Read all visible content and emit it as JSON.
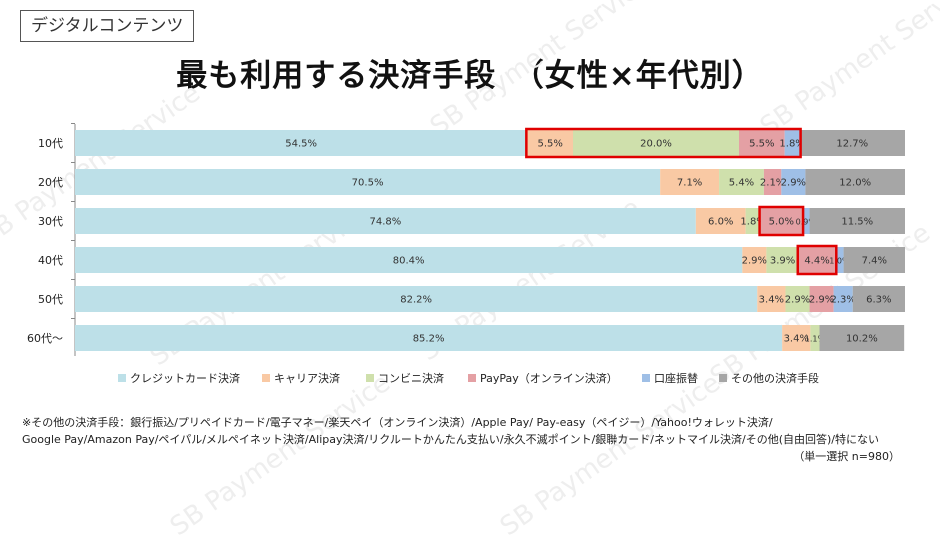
{
  "header": {
    "tag": "デジタルコンテンツ",
    "title": "最も利用する決済手段　（女性×年代別）"
  },
  "watermark": "SB Payment Service",
  "notes": {
    "line1": "※その他の決済手段：銀行振込/プリペイドカード/電子マネー/楽天ペイ（オンライン決済）/Apple Pay/ Pay-easy（ペイジー）/Yahoo!ウォレット決済/",
    "line2": "Google Pay/Amazon Pay/ペイパル/メルペイネット決済/Alipay決済/リクルートかんたん支払い/永久不滅ポイント/銀聯カード/ネットマイル決済/その他(自由回答)/特にない",
    "sample": "（単一選択 n=980）"
  },
  "chart_data": {
    "type": "bar",
    "orientation": "horizontal",
    "stacked": true,
    "title": "最も利用する決済手段　（女性×年代別）",
    "categories": [
      "10代",
      "20代",
      "30代",
      "40代",
      "50代",
      "60代～"
    ],
    "xlim": [
      0,
      100
    ],
    "series": [
      {
        "name": "クレジットカード決済",
        "color": "#bde0e8",
        "values": [
          54.5,
          70.5,
          74.8,
          80.4,
          82.2,
          85.2
        ],
        "labels": [
          "54.5%",
          "70.5%",
          "74.8%",
          "80.4%",
          "82.2%",
          "85.2%"
        ]
      },
      {
        "name": "キャリア決済",
        "color": "#f9c9a4",
        "values": [
          5.5,
          7.1,
          6.0,
          2.9,
          3.4,
          3.4
        ],
        "labels": [
          "5.5%",
          "7.1%",
          "6.0%",
          "2.9%",
          "3.4%",
          "3.4%"
        ]
      },
      {
        "name": "コンビニ決済",
        "color": "#cfe0ac",
        "values": [
          20.0,
          5.4,
          1.8,
          3.9,
          2.9,
          1.1
        ],
        "labels": [
          "20.0%",
          "5.4%",
          "1.8%",
          "3.9%",
          "2.9%",
          "1.1%"
        ]
      },
      {
        "name": "PayPay（オンライン決済）",
        "color": "#e4a0a4",
        "values": [
          5.5,
          2.1,
          5.0,
          4.4,
          2.9,
          0.0
        ],
        "labels": [
          "5.5%",
          "2.1%",
          "5.0%",
          "4.4%",
          "2.9%",
          ""
        ]
      },
      {
        "name": "口座振替",
        "color": "#9fbfe6",
        "values": [
          1.8,
          2.9,
          0.9,
          1.0,
          2.3,
          0.0
        ],
        "labels": [
          "1.8%",
          "2.9%",
          "0.9%",
          "1.0%",
          "2.3%",
          ""
        ]
      },
      {
        "name": "その他の決済手段",
        "color": "#a6a6a6",
        "values": [
          12.7,
          12.0,
          11.5,
          7.4,
          6.3,
          10.2
        ],
        "labels": [
          "12.7%",
          "12.0%",
          "11.5%",
          "7.4%",
          "6.3%",
          "10.2%"
        ]
      }
    ],
    "highlights": [
      {
        "category": "10代",
        "series_from": "キャリア決済",
        "series_to": "口座振替"
      },
      {
        "category": "30代",
        "series_from": "PayPay（オンライン決済）",
        "series_to": "PayPay（オンライン決済）"
      },
      {
        "category": "40代",
        "series_from": "PayPay（オンライン決済）",
        "series_to": "PayPay（オンライン決済）"
      }
    ],
    "highlight_color": "#e00000",
    "legend": "bottom"
  }
}
